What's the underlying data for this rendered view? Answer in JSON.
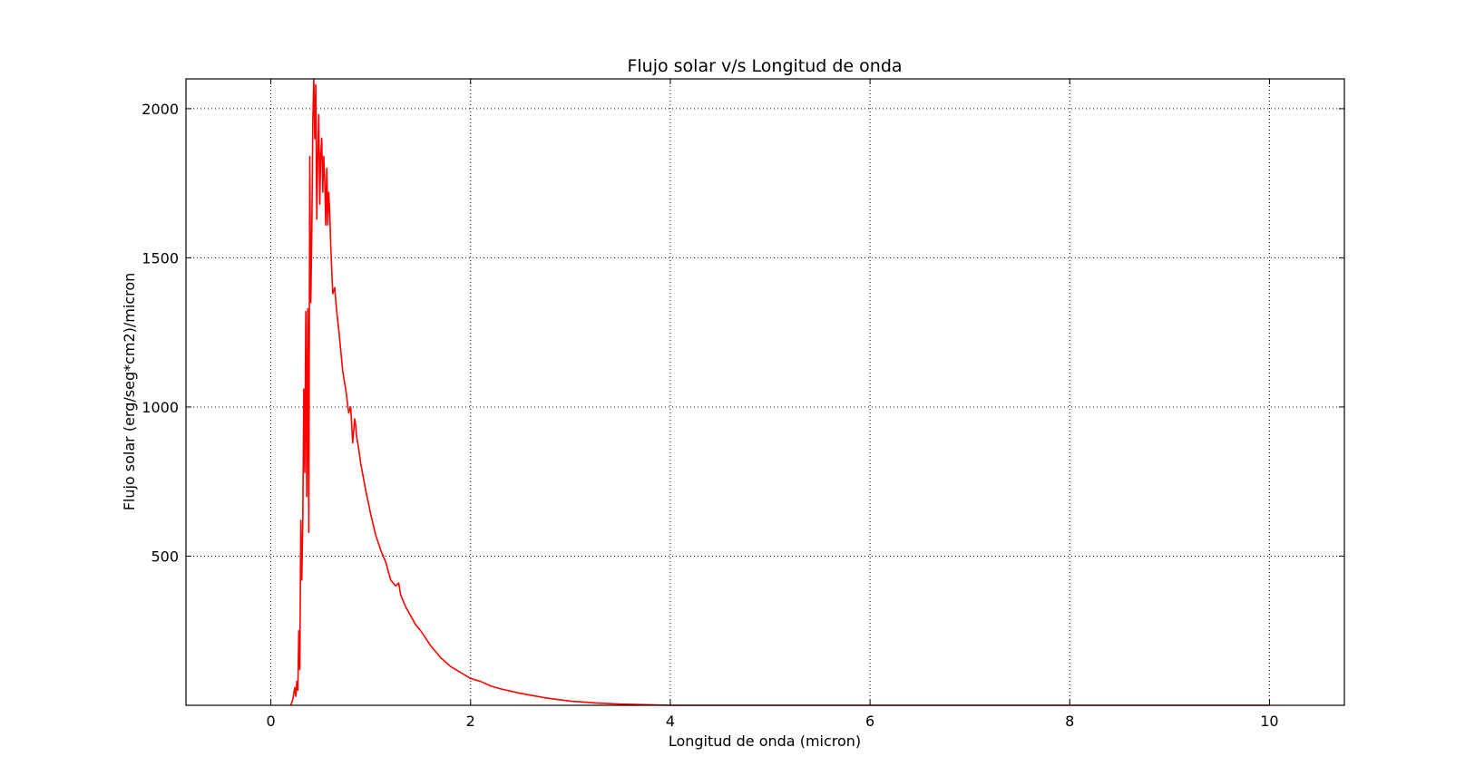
{
  "chart_data": {
    "type": "line",
    "title": "Flujo solar v/s Longitud de onda",
    "xlabel": "Longitud de onda (micron)",
    "ylabel": "Flujo solar (erg/seg*cm2)/micron",
    "xlim": [
      -0.85,
      10.75
    ],
    "ylim": [
      0,
      2100
    ],
    "xticks": [
      0,
      2,
      4,
      6,
      8,
      10
    ],
    "xtick_labels": [
      "0",
      "2",
      "4",
      "6",
      "8",
      "10"
    ],
    "yticks": [
      500,
      1000,
      1500,
      2000
    ],
    "ytick_labels": [
      "500",
      "1000",
      "1500",
      "2000"
    ],
    "grid": true,
    "series": [
      {
        "color": "#ff0000",
        "x": [
          0.2,
          0.22,
          0.24,
          0.25,
          0.26,
          0.27,
          0.28,
          0.29,
          0.3,
          0.31,
          0.32,
          0.33,
          0.34,
          0.35,
          0.36,
          0.37,
          0.38,
          0.39,
          0.4,
          0.41,
          0.42,
          0.43,
          0.44,
          0.45,
          0.46,
          0.47,
          0.48,
          0.49,
          0.5,
          0.51,
          0.52,
          0.53,
          0.54,
          0.55,
          0.56,
          0.57,
          0.58,
          0.59,
          0.6,
          0.62,
          0.64,
          0.66,
          0.68,
          0.7,
          0.72,
          0.75,
          0.78,
          0.8,
          0.82,
          0.84,
          0.85,
          0.86,
          0.88,
          0.9,
          0.95,
          1.0,
          1.05,
          1.1,
          1.15,
          1.2,
          1.25,
          1.28,
          1.3,
          1.35,
          1.4,
          1.45,
          1.5,
          1.6,
          1.7,
          1.8,
          1.9,
          2.0,
          2.1,
          2.2,
          2.3,
          2.5,
          2.75,
          3.0,
          3.25,
          3.5,
          3.75,
          4.0,
          4.5,
          5.0,
          6.0,
          8.0,
          10.0
        ],
        "y": [
          0,
          20,
          60,
          30,
          80,
          50,
          250,
          120,
          620,
          420,
          620,
          1060,
          780,
          1320,
          700,
          1330,
          580,
          1840,
          1350,
          1570,
          1950,
          2100,
          1900,
          2080,
          1630,
          1850,
          1980,
          1680,
          1850,
          1900,
          1720,
          1840,
          1760,
          1610,
          1800,
          1610,
          1720,
          1650,
          1540,
          1380,
          1400,
          1320,
          1260,
          1190,
          1120,
          1060,
          980,
          1000,
          880,
          960,
          940,
          900,
          860,
          810,
          720,
          640,
          570,
          520,
          480,
          420,
          400,
          410,
          370,
          330,
          300,
          270,
          250,
          200,
          160,
          130,
          110,
          90,
          80,
          65,
          55,
          40,
          25,
          14,
          8,
          4,
          2,
          0,
          0,
          0,
          0,
          0,
          0
        ]
      }
    ]
  }
}
